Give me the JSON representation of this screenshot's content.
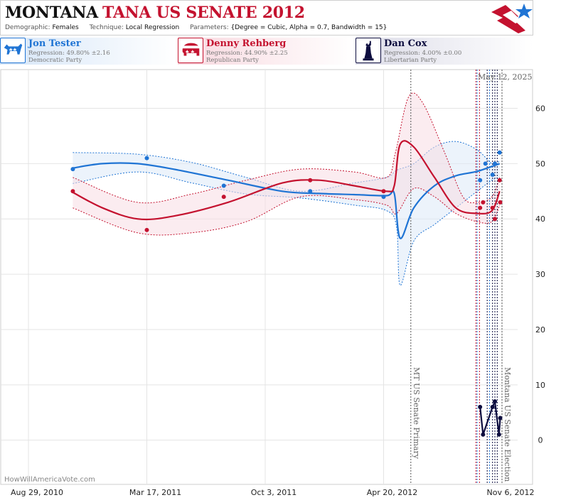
{
  "header": {
    "state": "MONTANA",
    "race": "TANA US SENATE 2012",
    "meta": {
      "demographic_label": "Demographic:",
      "demographic_value": "Females",
      "technique_label": "Technique:",
      "technique_value": "Local Regression",
      "parameters_label": "Parameters:",
      "parameters_value": "{Degree = Cubic, Alpha = 0.7, Bandwidth = 15}"
    }
  },
  "candidates": [
    {
      "name": "Jon Tester",
      "regression": "Regression: 49.80% ±2.16",
      "party": "Democratic Party",
      "color": "#1f74d4",
      "icon": "donkey-icon"
    },
    {
      "name": "Denny Rehberg",
      "regression": "Regression: 44.90% ±2.25",
      "party": "Republican Party",
      "color": "#c4122f",
      "icon": "elephant-icon"
    },
    {
      "name": "Dan Cox",
      "regression": "Regression: 4.00% ±0.00",
      "party": "Libertarian Party",
      "color": "#0d0d3f",
      "icon": "statue-of-liberty-icon"
    }
  ],
  "chart_data": {
    "type": "line",
    "date_label": "May 12, 2025",
    "watermark": "HowWillAmericaVote.com",
    "x_tick_labels": [
      "Aug 29, 2010",
      "Mar 17, 2011",
      "Oct 3, 2011",
      "Apr 20, 2012",
      "Nov 6, 2012"
    ],
    "x_tick_dates": [
      "2010-08-29",
      "2011-03-17",
      "2011-10-03",
      "2012-04-20",
      "2012-11-06"
    ],
    "y_ticks": [
      0,
      10,
      20,
      30,
      40,
      50,
      60
    ],
    "ylim": [
      -8,
      67
    ],
    "xlim": [
      "2010-08-29",
      "2012-11-12"
    ],
    "grid": true,
    "annotations": [
      {
        "label": "MT US Senate Primary",
        "date": "2012-06-05"
      },
      {
        "label": "Montana US Senate Election",
        "date": "2012-11-06"
      }
    ],
    "event_lines": [
      {
        "date": "2012-09-23",
        "color": "#c4122f"
      },
      {
        "date": "2012-09-25",
        "color": "#1f74d4"
      },
      {
        "date": "2012-09-29",
        "color": "#c4122f"
      },
      {
        "date": "2012-10-12",
        "color": "#0d0d3f"
      },
      {
        "date": "2012-10-16",
        "color": "#1f74d4"
      },
      {
        "date": "2012-10-21",
        "color": "#0d0d3f"
      },
      {
        "date": "2012-10-25",
        "color": "#0d0d3f"
      },
      {
        "date": "2012-10-29",
        "color": "#0d0d3f"
      }
    ],
    "series": [
      {
        "name": "Jon Tester",
        "color": "#1f74d4",
        "fill": "#dce9f7",
        "points": [
          [
            "2010-11-12",
            49
          ],
          [
            "2011-03-17",
            51
          ],
          [
            "2011-07-25",
            46
          ],
          [
            "2011-12-18",
            45
          ],
          [
            "2012-04-20",
            44
          ],
          [
            "2012-09-30",
            47
          ],
          [
            "2012-10-09",
            50
          ],
          [
            "2012-10-21",
            48
          ],
          [
            "2012-10-25",
            50
          ],
          [
            "2012-11-02",
            52
          ]
        ],
        "trend": [
          [
            "2010-11-12",
            49.2
          ],
          [
            "2011-01-01",
            50.0
          ],
          [
            "2011-03-01",
            50.0
          ],
          [
            "2011-05-01",
            49.0
          ],
          [
            "2011-08-01",
            47.0
          ],
          [
            "2011-11-01",
            45.0
          ],
          [
            "2012-01-01",
            44.6
          ],
          [
            "2012-03-01",
            44.4
          ],
          [
            "2012-04-25",
            44.2
          ],
          [
            "2012-05-08",
            44.6
          ],
          [
            "2012-05-18",
            36.5
          ],
          [
            "2012-06-10",
            42.0
          ],
          [
            "2012-07-15",
            46.0
          ],
          [
            "2012-08-20",
            47.8
          ],
          [
            "2012-09-25",
            48.6
          ],
          [
            "2012-11-02",
            50.0
          ]
        ],
        "upper": [
          [
            "2010-11-12",
            52.0
          ],
          [
            "2011-03-01",
            51.7
          ],
          [
            "2011-06-01",
            50.2
          ],
          [
            "2011-09-01",
            47.5
          ],
          [
            "2011-12-01",
            45.0
          ],
          [
            "2012-03-01",
            46.5
          ],
          [
            "2012-04-25",
            47.5
          ],
          [
            "2012-05-12",
            48.8
          ],
          [
            "2012-06-10",
            50.0
          ],
          [
            "2012-07-15",
            53.0
          ],
          [
            "2012-08-20",
            54.0
          ],
          [
            "2012-09-25",
            52.5
          ],
          [
            "2012-10-20",
            50.0
          ],
          [
            "2012-11-02",
            50.5
          ]
        ],
        "lower": [
          [
            "2010-11-12",
            46.4
          ],
          [
            "2011-03-01",
            48.5
          ],
          [
            "2011-06-01",
            46.5
          ],
          [
            "2011-09-01",
            44.5
          ],
          [
            "2011-12-01",
            43.8
          ],
          [
            "2012-03-01",
            42.5
          ],
          [
            "2012-04-25",
            41.5
          ],
          [
            "2012-05-12",
            38.5
          ],
          [
            "2012-05-18",
            28.0
          ],
          [
            "2012-06-10",
            36.0
          ],
          [
            "2012-07-15",
            39.0
          ],
          [
            "2012-08-20",
            42.0
          ],
          [
            "2012-09-25",
            45.0
          ],
          [
            "2012-10-20",
            47.0
          ],
          [
            "2012-11-02",
            47.5
          ]
        ]
      },
      {
        "name": "Denny Rehberg",
        "color": "#c4122f",
        "fill": "#f7dde3",
        "points": [
          [
            "2010-11-12",
            45
          ],
          [
            "2011-03-17",
            38
          ],
          [
            "2011-07-25",
            44
          ],
          [
            "2011-12-18",
            47
          ],
          [
            "2012-04-20",
            45
          ],
          [
            "2012-09-30",
            42
          ],
          [
            "2012-10-05",
            43
          ],
          [
            "2012-10-21",
            42
          ],
          [
            "2012-10-25",
            40
          ],
          [
            "2012-11-02",
            47
          ],
          [
            "2012-11-03",
            43
          ]
        ],
        "trend": [
          [
            "2010-11-12",
            44.8
          ],
          [
            "2011-01-01",
            42.0
          ],
          [
            "2011-03-01",
            40.0
          ],
          [
            "2011-05-01",
            40.5
          ],
          [
            "2011-08-01",
            43.0
          ],
          [
            "2011-11-01",
            46.5
          ],
          [
            "2012-01-01",
            47.0
          ],
          [
            "2012-03-01",
            46.0
          ],
          [
            "2012-04-25",
            45.0
          ],
          [
            "2012-05-08",
            46.0
          ],
          [
            "2012-05-18",
            53.5
          ],
          [
            "2012-06-10",
            53.0
          ],
          [
            "2012-07-15",
            47.5
          ],
          [
            "2012-08-20",
            42.0
          ],
          [
            "2012-09-25",
            41.0
          ],
          [
            "2012-10-20",
            41.5
          ],
          [
            "2012-11-02",
            45.0
          ]
        ],
        "upper": [
          [
            "2010-11-12",
            47.5
          ],
          [
            "2011-03-01",
            43.0
          ],
          [
            "2011-06-01",
            44.5
          ],
          [
            "2011-09-01",
            47.0
          ],
          [
            "2011-12-01",
            49.0
          ],
          [
            "2012-03-01",
            48.5
          ],
          [
            "2012-04-25",
            47.5
          ],
          [
            "2012-05-10",
            52.0
          ],
          [
            "2012-06-01",
            62.0
          ],
          [
            "2012-06-25",
            61.0
          ],
          [
            "2012-08-01",
            52.0
          ],
          [
            "2012-09-01",
            44.0
          ],
          [
            "2012-09-25",
            43.0
          ],
          [
            "2012-10-20",
            44.0
          ],
          [
            "2012-11-02",
            47.5
          ]
        ],
        "lower": [
          [
            "2010-11-12",
            42.0
          ],
          [
            "2011-03-01",
            37.5
          ],
          [
            "2011-06-01",
            37.5
          ],
          [
            "2011-09-01",
            39.5
          ],
          [
            "2011-12-01",
            44.0
          ],
          [
            "2012-03-01",
            43.5
          ],
          [
            "2012-04-25",
            42.5
          ],
          [
            "2012-05-12",
            41.0
          ],
          [
            "2012-06-10",
            45.5
          ],
          [
            "2012-07-15",
            44.0
          ],
          [
            "2012-08-20",
            41.0
          ],
          [
            "2012-09-25",
            39.5
          ],
          [
            "2012-10-20",
            39.5
          ],
          [
            "2012-11-02",
            42.5
          ]
        ]
      },
      {
        "name": "Dan Cox",
        "color": "#0d0d3f",
        "points": [
          [
            "2012-09-30",
            6
          ],
          [
            "2012-10-05",
            1
          ],
          [
            "2012-10-21",
            6
          ],
          [
            "2012-10-25",
            7
          ],
          [
            "2012-11-01",
            1
          ],
          [
            "2012-11-03",
            4
          ]
        ],
        "trend": [
          [
            "2012-09-30",
            6
          ],
          [
            "2012-10-05",
            1
          ],
          [
            "2012-10-21",
            6
          ],
          [
            "2012-10-25",
            7
          ],
          [
            "2012-11-01",
            1
          ],
          [
            "2012-11-03",
            4
          ]
        ]
      }
    ]
  }
}
